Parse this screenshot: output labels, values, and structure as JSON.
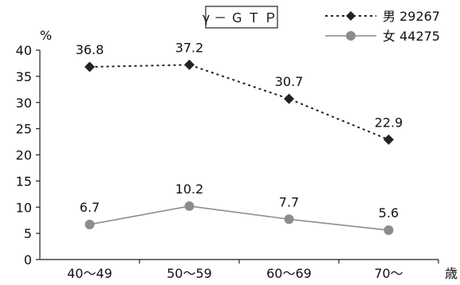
{
  "chart_data": {
    "type": "line",
    "title": "γ－ＧＴＰ",
    "ylabel": "%",
    "xlabel": "歳",
    "categories": [
      "40～49",
      "50～59",
      "60～69",
      "70～"
    ],
    "ylim": [
      0,
      40
    ],
    "yticks": [
      0,
      5,
      10,
      15,
      20,
      25,
      30,
      35,
      40
    ],
    "grid": false,
    "legend_position": "top-right",
    "series": [
      {
        "name": "男 29267",
        "values": [
          36.8,
          37.2,
          30.7,
          22.9
        ],
        "labels": [
          "36.8",
          "37.2",
          "30.7",
          "22.9"
        ],
        "color": "#222222",
        "marker": "diamond",
        "line_style": "dotted"
      },
      {
        "name": "女 44275",
        "values": [
          6.7,
          10.2,
          7.7,
          5.6
        ],
        "labels": [
          "6.7",
          "10.2",
          "7.7",
          "5.6"
        ],
        "color": "#8c8c8c",
        "marker": "circle",
        "line_style": "solid"
      }
    ]
  }
}
